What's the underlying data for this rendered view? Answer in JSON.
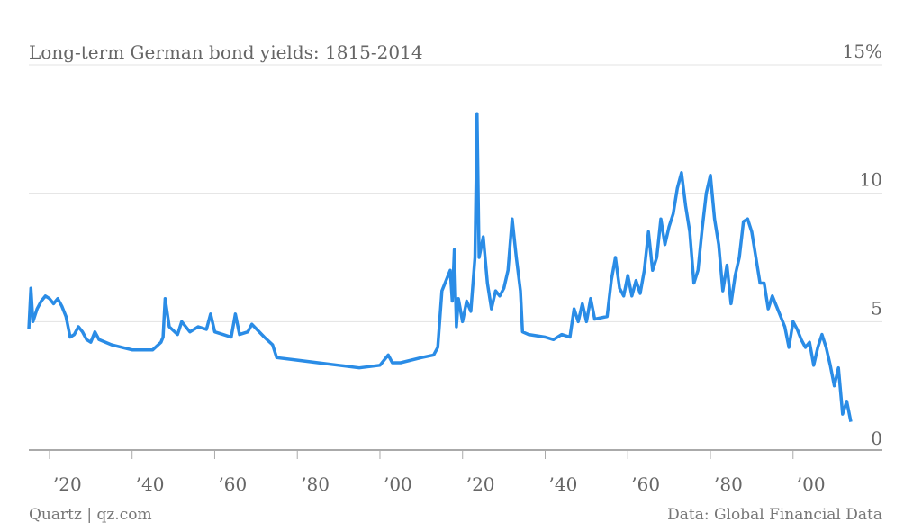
{
  "chart_data": {
    "type": "line",
    "title": "Long-term German bond yields: 1815-2014",
    "source": "Quartz | qz.com",
    "credit": "Data: Global Financial Data",
    "xlim": [
      1815,
      2014
    ],
    "xticks": [
      {
        "value": 1820,
        "label": "’20"
      },
      {
        "value": 1840,
        "label": "’40"
      },
      {
        "value": 1860,
        "label": "’60"
      },
      {
        "value": 1880,
        "label": "’80"
      },
      {
        "value": 1900,
        "label": "’00"
      },
      {
        "value": 1920,
        "label": "’20"
      },
      {
        "value": 1940,
        "label": "’40"
      },
      {
        "value": 1960,
        "label": "’60"
      },
      {
        "value": 1980,
        "label": "’80"
      },
      {
        "value": 2000,
        "label": "’00"
      }
    ],
    "ylim": [
      0,
      15
    ],
    "yticks": [
      0,
      5,
      10,
      {
        "value": 15,
        "label": "15%"
      }
    ],
    "grid": true,
    "x": [
      1815,
      1815.5,
      1816,
      1817,
      1818,
      1819,
      1820,
      1821,
      1822,
      1823,
      1824,
      1825,
      1826,
      1827,
      1828,
      1829,
      1830,
      1831,
      1832,
      1835,
      1840,
      1845,
      1847,
      1847.5,
      1848,
      1849,
      1851,
      1852,
      1854,
      1856,
      1858,
      1859,
      1860,
      1862,
      1864,
      1865,
      1866,
      1868,
      1869,
      1872,
      1874,
      1875,
      1880,
      1885,
      1890,
      1895,
      1900,
      1902,
      1903,
      1905,
      1910,
      1913,
      1914,
      1915,
      1916,
      1917,
      1917.5,
      1918,
      1918.5,
      1919,
      1920,
      1921,
      1922,
      1923,
      1923.5,
      1924,
      1925,
      1926,
      1927,
      1928,
      1929,
      1930,
      1931,
      1932,
      1933,
      1934,
      1934.5,
      1936,
      1940,
      1942,
      1944,
      1946,
      1947,
      1948,
      1949,
      1950,
      1951,
      1952,
      1955,
      1956,
      1957,
      1958,
      1959,
      1960,
      1961,
      1962,
      1963,
      1964,
      1965,
      1966,
      1967,
      1968,
      1969,
      1970,
      1971,
      1972,
      1973,
      1974,
      1975,
      1976,
      1977,
      1978,
      1979,
      1980,
      1981,
      1982,
      1983,
      1984,
      1985,
      1986,
      1987,
      1988,
      1989,
      1990,
      1991,
      1992,
      1993,
      1994,
      1995,
      1996,
      1997,
      1998,
      1999,
      2000,
      2001,
      2002,
      2003,
      2004,
      2005,
      2006,
      2007,
      2008,
      2009,
      2010,
      2011,
      2012,
      2013,
      2014
    ],
    "series": [
      {
        "name": "Yield",
        "color": "#2a8ce6",
        "values": [
          4.7,
          6.3,
          5.0,
          5.5,
          5.8,
          6.0,
          5.9,
          5.7,
          5.9,
          5.6,
          5.2,
          4.4,
          4.5,
          4.8,
          4.6,
          4.3,
          4.2,
          4.6,
          4.3,
          4.1,
          3.9,
          3.9,
          4.2,
          4.4,
          5.9,
          4.8,
          4.5,
          5.0,
          4.6,
          4.8,
          4.7,
          5.3,
          4.6,
          4.5,
          4.4,
          5.3,
          4.5,
          4.6,
          4.9,
          4.4,
          4.1,
          3.6,
          3.5,
          3.4,
          3.3,
          3.2,
          3.3,
          3.7,
          3.4,
          3.4,
          3.6,
          3.7,
          4.0,
          6.2,
          6.6,
          7.0,
          5.8,
          7.8,
          4.8,
          5.9,
          5.0,
          5.8,
          5.4,
          7.5,
          13.1,
          7.5,
          8.3,
          6.5,
          5.5,
          6.2,
          6.0,
          6.3,
          7.0,
          9.0,
          7.5,
          6.2,
          4.6,
          4.5,
          4.4,
          4.3,
          4.5,
          4.4,
          5.5,
          5.0,
          5.7,
          5.0,
          5.9,
          5.1,
          5.2,
          6.6,
          7.5,
          6.3,
          6.0,
          6.8,
          6.0,
          6.6,
          6.1,
          7.0,
          8.5,
          7.0,
          7.5,
          9.0,
          8.0,
          8.7,
          9.2,
          10.2,
          10.8,
          9.5,
          8.5,
          6.5,
          7.0,
          8.6,
          10.0,
          10.7,
          9.0,
          8.0,
          6.2,
          7.2,
          5.7,
          6.8,
          7.5,
          8.9,
          9.0,
          8.5,
          7.5,
          6.5,
          6.5,
          5.5,
          6.0,
          5.6,
          5.2,
          4.8,
          4.0,
          5.0,
          4.7,
          4.3,
          4.0,
          4.2,
          3.3,
          4.0,
          4.5,
          4.0,
          3.3,
          2.5,
          3.2,
          1.4,
          1.9,
          1.1
        ]
      }
    ]
  }
}
